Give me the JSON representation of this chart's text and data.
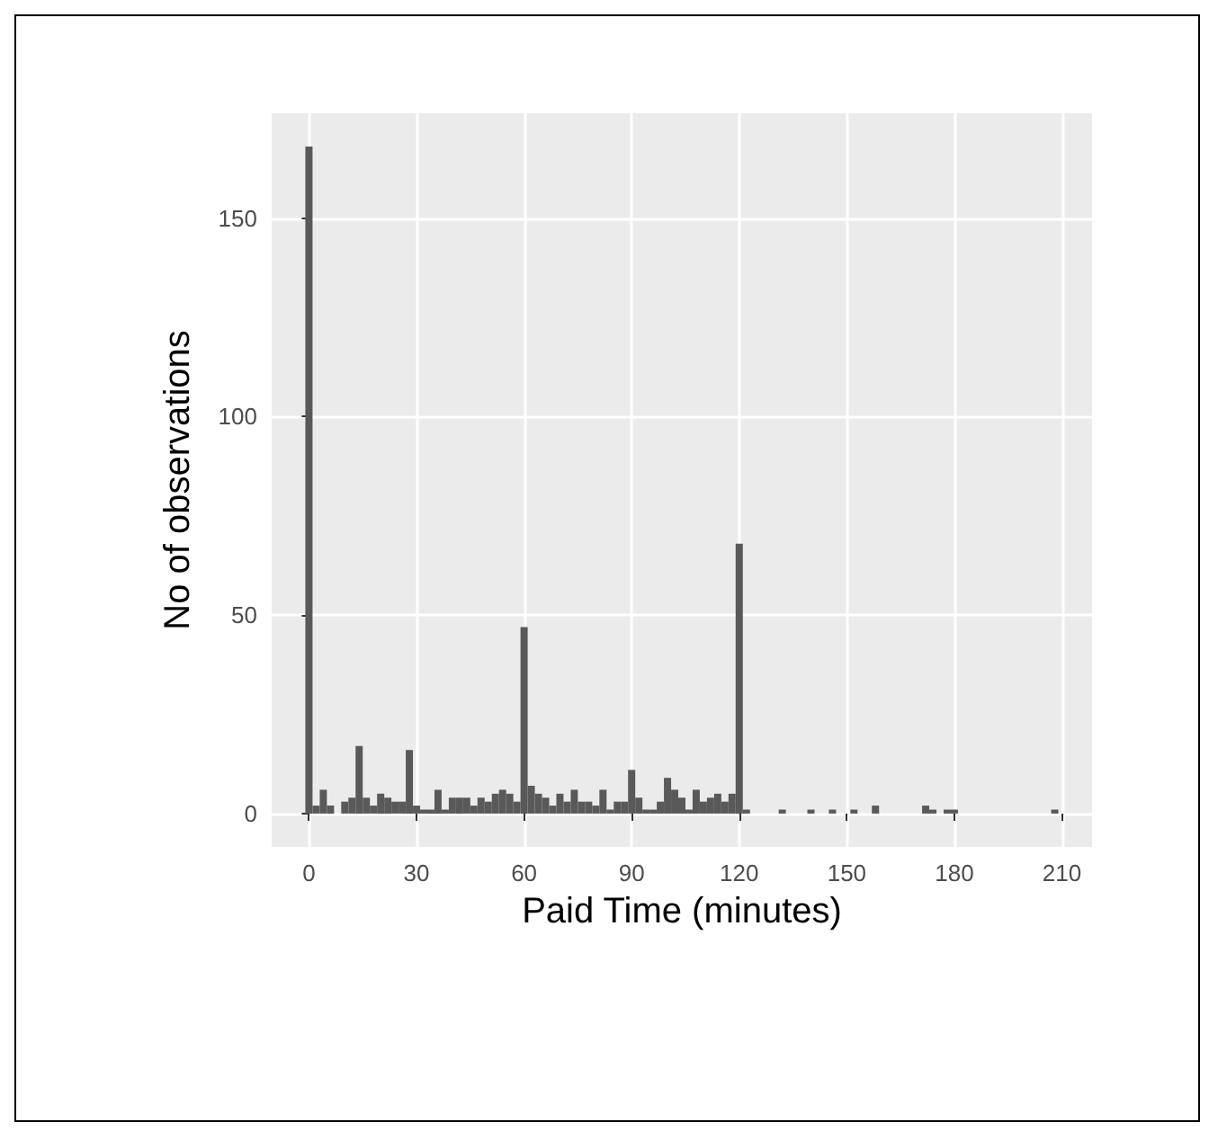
{
  "chart_data": {
    "type": "histogram",
    "xlabel": "Paid Time (minutes)",
    "ylabel": "No of observations",
    "bins": [
      -1,
      1,
      3,
      5,
      7,
      9,
      11,
      13,
      15,
      17,
      19,
      21,
      23,
      25,
      27,
      29,
      31,
      33,
      35,
      37,
      39,
      41,
      43,
      45,
      47,
      49,
      51,
      53,
      55,
      57,
      59,
      61,
      63,
      65,
      67,
      69,
      71,
      73,
      75,
      77,
      79,
      81,
      83,
      85,
      87,
      89,
      91,
      93,
      95,
      97,
      99,
      101,
      103,
      105,
      107,
      109,
      111,
      113,
      115,
      117,
      119,
      121,
      123,
      125,
      127,
      129,
      131,
      133,
      135,
      137,
      139,
      141,
      143,
      145,
      147,
      149,
      151,
      153,
      155,
      157,
      159,
      161,
      163,
      165,
      167,
      169,
      171,
      173,
      175,
      177,
      179,
      181,
      183,
      185,
      187,
      189,
      191,
      193,
      195,
      197,
      199,
      201,
      203,
      205,
      207,
      209
    ],
    "values": [
      168,
      2,
      6,
      2,
      0,
      3,
      4,
      17,
      4,
      2,
      5,
      4,
      3,
      3,
      16,
      2,
      1,
      1,
      6,
      1,
      4,
      4,
      4,
      2,
      4,
      3,
      5,
      6,
      5,
      3,
      47,
      7,
      5,
      4,
      2,
      5,
      3,
      6,
      3,
      3,
      2,
      6,
      1,
      3,
      3,
      11,
      4,
      1,
      1,
      3,
      9,
      6,
      4,
      1,
      6,
      3,
      4,
      5,
      3,
      5,
      68,
      1,
      0,
      0,
      0,
      0,
      1,
      0,
      0,
      0,
      1,
      0,
      0,
      1,
      0,
      0,
      1,
      0,
      0,
      2,
      0,
      0,
      0,
      0,
      0,
      0,
      2,
      1,
      0,
      1,
      1,
      0,
      0,
      0,
      0,
      0,
      0,
      0,
      0,
      0,
      0,
      0,
      0,
      0,
      1
    ],
    "color": "#595959",
    "xlim": [
      -10.4,
      218.4
    ],
    "ylim": [
      -8.4,
      176.4
    ],
    "xticks": [
      0,
      30,
      60,
      90,
      120,
      150,
      180,
      210
    ],
    "yticks": [
      0,
      50,
      100,
      150
    ],
    "grid": true
  }
}
